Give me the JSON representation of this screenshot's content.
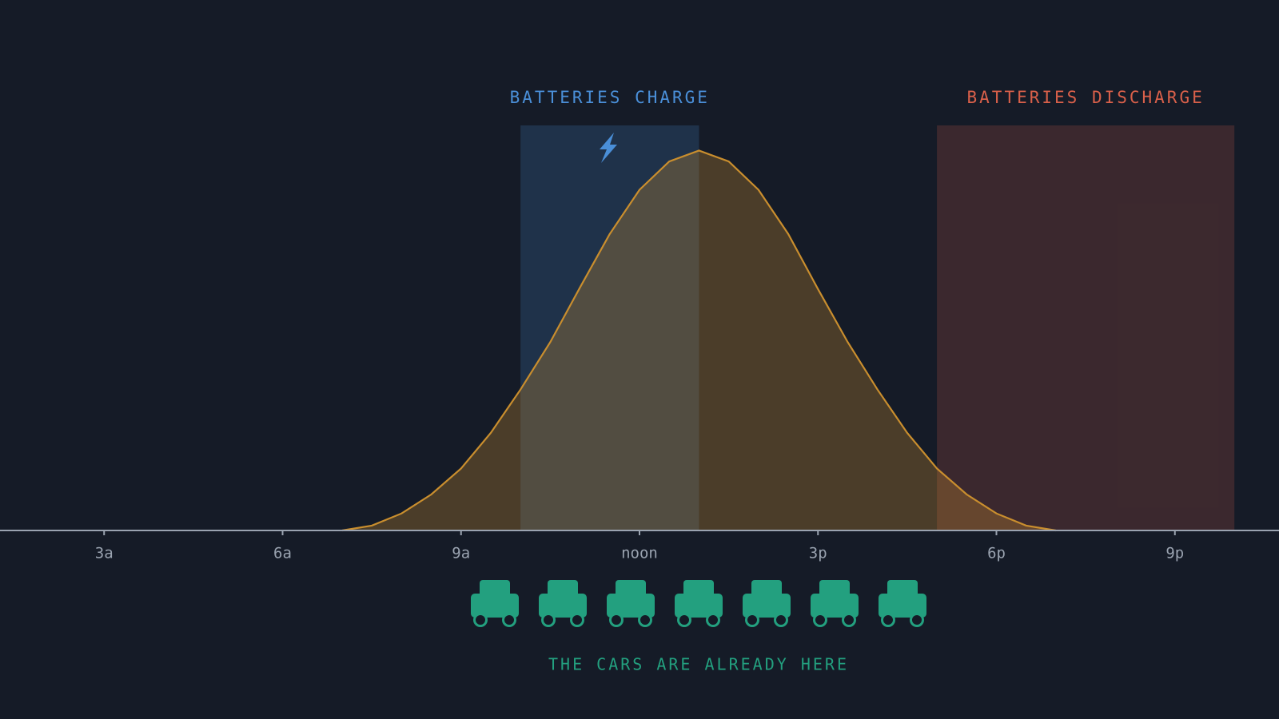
{
  "chart_data": {
    "type": "area",
    "x": [
      7,
      7.5,
      8,
      8.5,
      9,
      9.5,
      10,
      10.5,
      11,
      11.5,
      12,
      12.5,
      13,
      13.5,
      14,
      14.5,
      15,
      15.5,
      16,
      16.5,
      17,
      17.5,
      18,
      18.5,
      19
    ],
    "values": [
      0,
      1.2,
      4.2,
      8.9,
      15.3,
      24.1,
      34.8,
      46.5,
      60,
      73.2,
      84.1,
      91.1,
      93.8,
      91.1,
      84.1,
      73.2,
      59.6,
      46.5,
      34.8,
      24.1,
      15.3,
      8.9,
      4.2,
      1.2,
      0
    ],
    "color": "#c98e2e",
    "xlim": [
      1.25,
      22.75
    ],
    "ylim": [
      0,
      100
    ],
    "xticks": [
      {
        "value": 3,
        "label": "3a"
      },
      {
        "value": 6,
        "label": "6a"
      },
      {
        "value": 9,
        "label": "9a"
      },
      {
        "value": 12,
        "label": "noon"
      },
      {
        "value": 15,
        "label": "3p"
      },
      {
        "value": 18,
        "label": "6p"
      },
      {
        "value": 21,
        "label": "9p"
      }
    ],
    "bands": [
      {
        "label": "BATTERIES CHARGE",
        "start": 10,
        "end": 13,
        "color": "#4a8fd8"
      },
      {
        "label": "BATTERIES DISCHARGE",
        "start": 17,
        "end": 22,
        "color": "#d9604a"
      }
    ],
    "caption": "THE CARS ARE ALREADY HERE"
  }
}
